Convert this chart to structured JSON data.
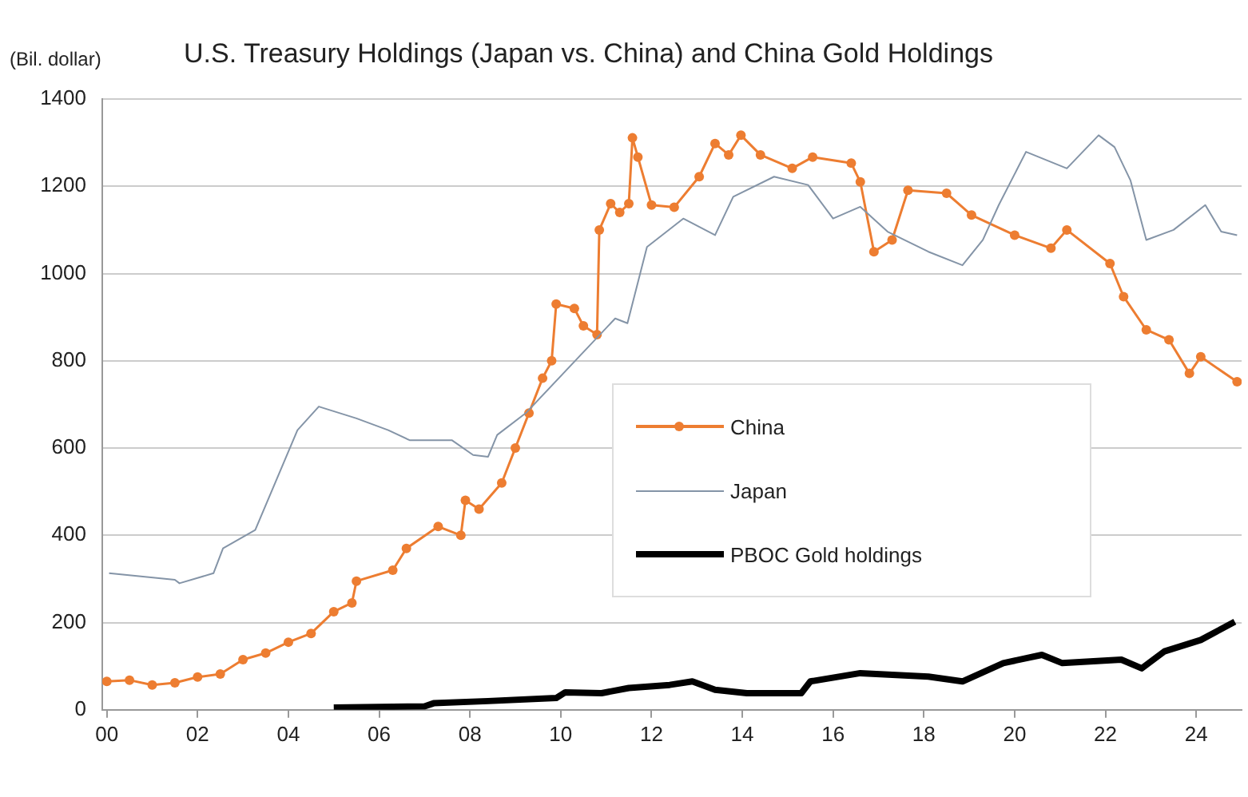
{
  "chart_data": {
    "type": "line",
    "title": "U.S. Treasury Holdings (Japan vs. China) and China Gold Holdings",
    "ylabel": "(Bil. dollar)",
    "xlim": [
      1999.9,
      2025.0
    ],
    "xticks": [
      {
        "value": 2000,
        "label": "00"
      },
      {
        "value": 2002,
        "label": "02"
      },
      {
        "value": 2004,
        "label": "04"
      },
      {
        "value": 2006,
        "label": "06"
      },
      {
        "value": 2008,
        "label": "08"
      },
      {
        "value": 2010,
        "label": "10"
      },
      {
        "value": 2012,
        "label": "12"
      },
      {
        "value": 2014,
        "label": "14"
      },
      {
        "value": 2016,
        "label": "16"
      },
      {
        "value": 2018,
        "label": "18"
      },
      {
        "value": 2020,
        "label": "20"
      },
      {
        "value": 2022,
        "label": "22"
      },
      {
        "value": 2024,
        "label": "24"
      }
    ],
    "ylim": [
      0,
      1400
    ],
    "yticks": [
      0,
      200,
      400,
      600,
      800,
      1000,
      1200,
      1400
    ],
    "grid": "y",
    "legend": "center right",
    "series": [
      {
        "name": "China",
        "color": "#ed7d31",
        "marker": "circle",
        "x": [
          2000,
          2000.5,
          2001,
          2001.5,
          2002,
          2002.5,
          2003,
          2003.5,
          2004,
          2004.5,
          2005,
          2005.4,
          2005.5,
          2006.3,
          2006.6,
          2007.3,
          2007.8,
          2007.9,
          2008.2,
          2008.7,
          2009,
          2009.3,
          2009.6,
          2009.8,
          2009.9,
          2010.3,
          2010.5,
          2010.8,
          2010.85,
          2011.1,
          2011.3,
          2011.5,
          2011.58,
          2011.7,
          2012,
          2012.5,
          2013.05,
          2013.4,
          2013.7,
          2013.97,
          2014.4,
          2015.1,
          2015.55,
          2016.4,
          2016.6,
          2016.9,
          2017.3,
          2017.65,
          2018.5,
          2019.05,
          2020,
          2020.8,
          2021.15,
          2022.1,
          2022.4,
          2022.9,
          2023.4,
          2023.85,
          2024.1,
          2024.9
        ],
        "values": [
          65,
          68,
          57,
          62,
          75,
          82,
          115,
          130,
          155,
          175,
          225,
          245,
          295,
          320,
          370,
          420,
          400,
          480,
          460,
          520,
          600,
          680,
          760,
          800,
          930,
          920,
          880,
          860,
          1100,
          1160,
          1140,
          1160,
          1311,
          1267,
          1157,
          1152,
          1222,
          1298,
          1272,
          1317,
          1272,
          1241,
          1267,
          1253,
          1210,
          1050,
          1077,
          1191,
          1184,
          1134,
          1088,
          1058,
          1100,
          1023,
          947,
          871,
          848,
          771,
          809,
          752
        ]
      },
      {
        "name": "Japan",
        "color": "#8494a7",
        "marker": "none",
        "x": [
          2000.05,
          2001.5,
          2001.6,
          2002.35,
          2002.56,
          2003.27,
          2004.2,
          2004.67,
          2005.5,
          2006.2,
          2006.67,
          2007.6,
          2008.07,
          2008.4,
          2008.6,
          2009.23,
          2010.4,
          2011.2,
          2011.47,
          2011.75,
          2011.9,
          2012.7,
          2013.4,
          2013.8,
          2014.7,
          2015.45,
          2016,
          2016.6,
          2017.2,
          2018.1,
          2018.85,
          2019.3,
          2019.65,
          2020.25,
          2021.15,
          2021.85,
          2022.2,
          2022.55,
          2022.9,
          2023.5,
          2024.2,
          2024.55,
          2024.9
        ],
        "values": [
          313,
          298,
          290,
          313,
          370,
          412,
          641,
          695,
          668,
          641,
          618,
          618,
          584,
          580,
          630,
          680,
          809,
          897,
          886,
          1000,
          1061,
          1126,
          1088,
          1176,
          1222,
          1203,
          1126,
          1153,
          1096,
          1050,
          1019,
          1077,
          1157,
          1279,
          1241,
          1317,
          1290,
          1214,
          1077,
          1100,
          1157,
          1096,
          1088
        ]
      },
      {
        "name": "PBOC Gold holdings",
        "color": "#000000",
        "marker": "none",
        "x": [
          2005,
          2007,
          2007.2,
          2008.4,
          2009.9,
          2010.1,
          2010.9,
          2011.5,
          2012.4,
          2012.9,
          2013.4,
          2014.1,
          2015.3,
          2015.5,
          2016.6,
          2018.1,
          2018.85,
          2019.75,
          2020.6,
          2021.05,
          2022.35,
          2022.8,
          2023.3,
          2024.1,
          2024.85
        ],
        "values": [
          5,
          8,
          15,
          20,
          27,
          40,
          38,
          50,
          57,
          65,
          46,
          38,
          38,
          65,
          84,
          76,
          65,
          107,
          126,
          107,
          115,
          95,
          134,
          160,
          202
        ]
      }
    ]
  }
}
